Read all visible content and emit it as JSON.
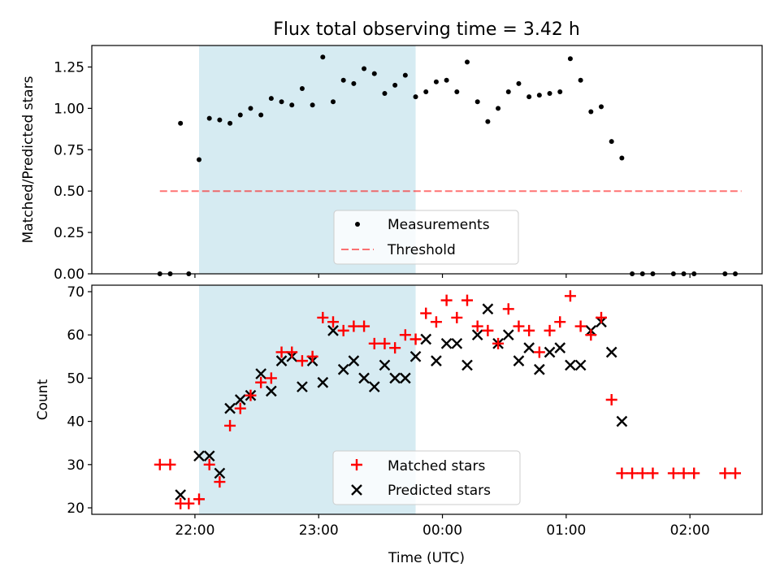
{
  "chart_data": [
    {
      "type": "scatter",
      "title": "Flux total observing time = 3.42 h",
      "ylabel": "Matched/Predicted stars",
      "xlabel": "",
      "ylim": [
        0,
        1.38
      ],
      "yticks": [
        "0.00",
        "0.25",
        "0.50",
        "0.75",
        "1.00",
        "1.25"
      ],
      "ytick_values": [
        0,
        0.25,
        0.5,
        0.75,
        1.0,
        1.25
      ],
      "grid": false,
      "legend_position": "lower center",
      "legend": [
        "Measurements",
        "Threshold"
      ],
      "shaded_interval": [
        "22:02",
        "23:47"
      ],
      "threshold": 0.5,
      "threshold_range": [
        "21:43",
        "02:25"
      ],
      "series": [
        {
          "name": "Measurements",
          "color": "#000000",
          "marker": "dot",
          "points": [
            [
              "21:43",
              0
            ],
            [
              "21:48",
              0
            ],
            [
              "21:53",
              0.91
            ],
            [
              "21:57",
              0
            ],
            [
              "22:02",
              0.69
            ],
            [
              "22:07",
              0.94
            ],
            [
              "22:12",
              0.93
            ],
            [
              "22:17",
              0.91
            ],
            [
              "22:22",
              0.96
            ],
            [
              "22:27",
              1.0
            ],
            [
              "22:32",
              0.96
            ],
            [
              "22:37",
              1.06
            ],
            [
              "22:42",
              1.04
            ],
            [
              "22:47",
              1.02
            ],
            [
              "22:52",
              1.12
            ],
            [
              "22:57",
              1.02
            ],
            [
              "23:02",
              1.31
            ],
            [
              "23:07",
              1.04
            ],
            [
              "23:12",
              1.17
            ],
            [
              "23:17",
              1.15
            ],
            [
              "23:22",
              1.24
            ],
            [
              "23:27",
              1.21
            ],
            [
              "23:32",
              1.09
            ],
            [
              "23:37",
              1.14
            ],
            [
              "23:42",
              1.2
            ],
            [
              "23:47",
              1.07
            ],
            [
              "23:52",
              1.1
            ],
            [
              "23:57",
              1.16
            ],
            [
              "00:02",
              1.17
            ],
            [
              "00:07",
              1.1
            ],
            [
              "00:12",
              1.28
            ],
            [
              "00:17",
              1.04
            ],
            [
              "00:22",
              0.92
            ],
            [
              "00:27",
              1.0
            ],
            [
              "00:32",
              1.1
            ],
            [
              "00:37",
              1.15
            ],
            [
              "00:42",
              1.07
            ],
            [
              "00:47",
              1.08
            ],
            [
              "00:52",
              1.09
            ],
            [
              "00:57",
              1.1
            ],
            [
              "01:02",
              1.3
            ],
            [
              "01:07",
              1.17
            ],
            [
              "01:12",
              0.98
            ],
            [
              "01:17",
              1.01
            ],
            [
              "01:22",
              0.8
            ],
            [
              "01:27",
              0.7
            ],
            [
              "01:32",
              0
            ],
            [
              "01:37",
              0
            ],
            [
              "01:42",
              0
            ],
            [
              "01:52",
              0
            ],
            [
              "01:57",
              0
            ],
            [
              "02:02",
              0
            ],
            [
              "02:17",
              0
            ],
            [
              "02:22",
              0
            ]
          ]
        }
      ]
    },
    {
      "type": "scatter",
      "title": "",
      "xlabel": "Time (UTC)",
      "ylabel": "Count",
      "ylim": [
        18.5,
        71.5
      ],
      "yticks": [
        "20",
        "30",
        "40",
        "50",
        "60",
        "70"
      ],
      "ytick_values": [
        20,
        30,
        40,
        50,
        60,
        70
      ],
      "xticks": [
        "22:00",
        "23:00",
        "00:00",
        "01:00",
        "02:00"
      ],
      "xtick_values": [
        "22:00",
        "23:00",
        "00:00",
        "01:00",
        "02:00"
      ],
      "grid": false,
      "legend_position": "lower center",
      "legend": [
        "Matched stars",
        "Predicted stars"
      ],
      "shaded_interval": [
        "22:02",
        "23:47"
      ],
      "series": [
        {
          "name": "Matched stars",
          "color": "#ff0000",
          "marker": "plus",
          "points": [
            [
              "21:43",
              30
            ],
            [
              "21:48",
              30
            ],
            [
              "21:53",
              21
            ],
            [
              "21:57",
              21
            ],
            [
              "22:02",
              22
            ],
            [
              "22:07",
              30
            ],
            [
              "22:12",
              26
            ],
            [
              "22:17",
              39
            ],
            [
              "22:22",
              43
            ],
            [
              "22:27",
              46
            ],
            [
              "22:32",
              49
            ],
            [
              "22:37",
              50
            ],
            [
              "22:42",
              56
            ],
            [
              "22:47",
              56
            ],
            [
              "22:52",
              54
            ],
            [
              "22:57",
              55
            ],
            [
              "23:02",
              64
            ],
            [
              "23:07",
              63
            ],
            [
              "23:12",
              61
            ],
            [
              "23:17",
              62
            ],
            [
              "23:22",
              62
            ],
            [
              "23:27",
              58
            ],
            [
              "23:32",
              58
            ],
            [
              "23:37",
              57
            ],
            [
              "23:42",
              60
            ],
            [
              "23:47",
              59
            ],
            [
              "23:52",
              65
            ],
            [
              "23:57",
              63
            ],
            [
              "00:02",
              68
            ],
            [
              "00:07",
              64
            ],
            [
              "00:12",
              68
            ],
            [
              "00:17",
              62
            ],
            [
              "00:22",
              61
            ],
            [
              "00:27",
              58
            ],
            [
              "00:32",
              66
            ],
            [
              "00:37",
              62
            ],
            [
              "00:42",
              61
            ],
            [
              "00:47",
              56
            ],
            [
              "00:52",
              61
            ],
            [
              "00:57",
              63
            ],
            [
              "01:02",
              69
            ],
            [
              "01:07",
              62
            ],
            [
              "01:12",
              60
            ],
            [
              "01:17",
              64
            ],
            [
              "01:22",
              45
            ],
            [
              "01:27",
              28
            ],
            [
              "01:32",
              28
            ],
            [
              "01:37",
              28
            ],
            [
              "01:42",
              28
            ],
            [
              "01:52",
              28
            ],
            [
              "01:57",
              28
            ],
            [
              "02:02",
              28
            ],
            [
              "02:17",
              28
            ],
            [
              "02:22",
              28
            ]
          ]
        },
        {
          "name": "Predicted stars",
          "color": "#000000",
          "marker": "x",
          "points": [
            [
              "21:53",
              23
            ],
            [
              "22:02",
              32
            ],
            [
              "22:07",
              32
            ],
            [
              "22:12",
              28
            ],
            [
              "22:17",
              43
            ],
            [
              "22:22",
              45
            ],
            [
              "22:27",
              46
            ],
            [
              "22:32",
              51
            ],
            [
              "22:37",
              47
            ],
            [
              "22:42",
              54
            ],
            [
              "22:47",
              55
            ],
            [
              "22:52",
              48
            ],
            [
              "22:57",
              54
            ],
            [
              "23:02",
              49
            ],
            [
              "23:07",
              61
            ],
            [
              "23:12",
              52
            ],
            [
              "23:17",
              54
            ],
            [
              "23:22",
              50
            ],
            [
              "23:27",
              48
            ],
            [
              "23:32",
              53
            ],
            [
              "23:37",
              50
            ],
            [
              "23:42",
              50
            ],
            [
              "23:47",
              55
            ],
            [
              "23:52",
              59
            ],
            [
              "23:57",
              54
            ],
            [
              "00:02",
              58
            ],
            [
              "00:07",
              58
            ],
            [
              "00:12",
              53
            ],
            [
              "00:17",
              60
            ],
            [
              "00:22",
              66
            ],
            [
              "00:27",
              58
            ],
            [
              "00:32",
              60
            ],
            [
              "00:37",
              54
            ],
            [
              "00:42",
              57
            ],
            [
              "00:47",
              52
            ],
            [
              "00:52",
              56
            ],
            [
              "00:57",
              57
            ],
            [
              "01:02",
              53
            ],
            [
              "01:07",
              53
            ],
            [
              "01:12",
              61
            ],
            [
              "01:17",
              63
            ],
            [
              "01:22",
              56
            ],
            [
              "01:27",
              40
            ]
          ]
        }
      ]
    }
  ],
  "colors": {
    "shading": "#add8e6",
    "threshold": "#ff0000",
    "matched": "#ff0000",
    "predicted": "#000000",
    "measurements": "#000000"
  }
}
